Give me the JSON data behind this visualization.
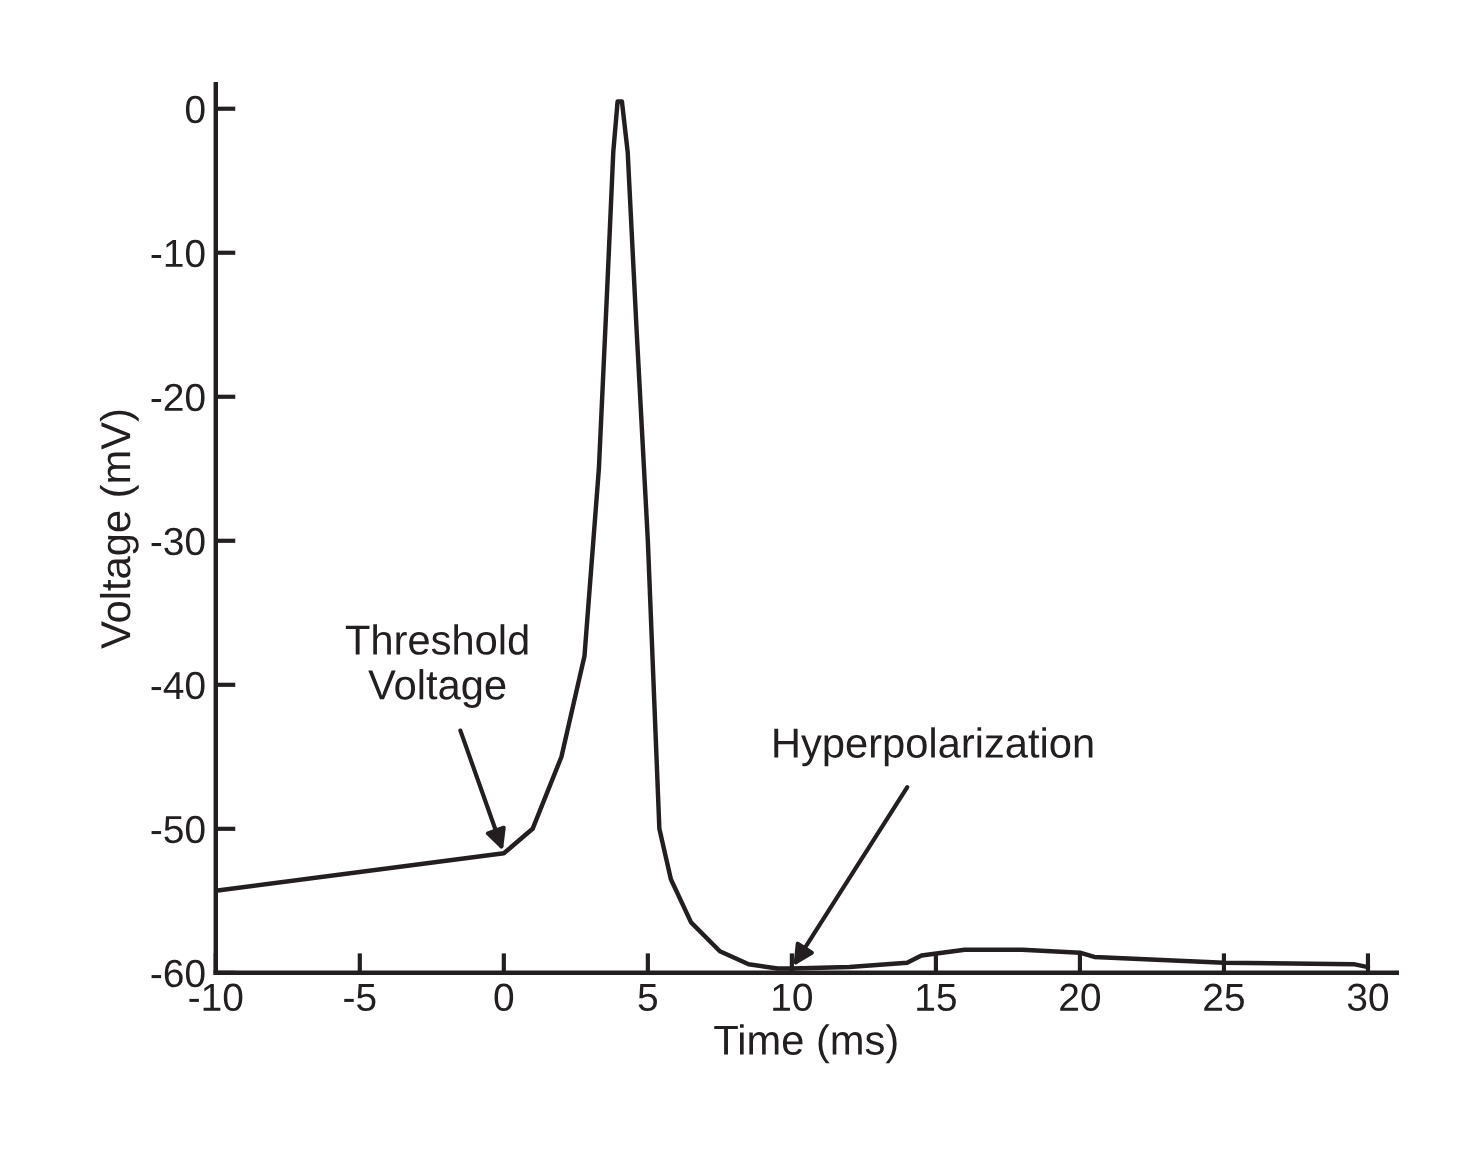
{
  "chart_data": {
    "type": "line",
    "xlabel": "Time (ms)",
    "ylabel": "Voltage (mV)",
    "xlim": [
      -10,
      31
    ],
    "ylim": [
      -60,
      1.7
    ],
    "xticks": [
      -10,
      -5,
      0,
      5,
      10,
      15,
      20,
      25,
      30
    ],
    "yticks": [
      -60,
      -50,
      -40,
      -30,
      -20,
      -10,
      0
    ],
    "grid": false,
    "legend": false,
    "marker": "none",
    "line_style": "solid",
    "series": [
      {
        "color": "#231f20",
        "x": [
          -10,
          0,
          1,
          2,
          2.8,
          3.3,
          3.6,
          3.8,
          3.95,
          4.1,
          4.3,
          4.6,
          5,
          5.3,
          5.4,
          5.8,
          6.5,
          7.5,
          8.5,
          9.5,
          10,
          12,
          14,
          14.5,
          16,
          18,
          20,
          20.5,
          25,
          29.5,
          30
        ],
        "values": [
          -54.3,
          -51.7,
          -50,
          -45,
          -38,
          -25,
          -12,
          -3,
          0.5,
          0.5,
          -3,
          -15,
          -30,
          -45,
          -50,
          -53.5,
          -56.5,
          -58.5,
          -59.4,
          -59.7,
          -59.7,
          -59.6,
          -59.3,
          -58.8,
          -58.4,
          -58.4,
          -58.6,
          -58.9,
          -59.3,
          -59.4,
          -59.6
        ]
      }
    ],
    "annotations": [
      {
        "text": "Threshold\nVoltage",
        "x": 0,
        "y": -51.7
      },
      {
        "text": "Hyperpolarization",
        "x": 10,
        "y": -59.7
      }
    ]
  }
}
